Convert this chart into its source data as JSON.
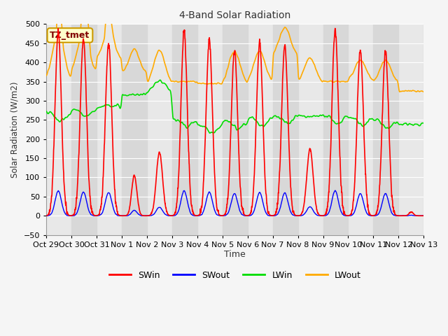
{
  "title": "4-Band Solar Radiation",
  "ylabel": "Solar Radiation (W/m2)",
  "xlabel": "Time",
  "ylim": [
    -50,
    500
  ],
  "fig_bg": "#f5f5f5",
  "plot_bg_light": "#e8e8e8",
  "plot_bg_dark": "#d8d8d8",
  "annotation_label": "TZ_tmet",
  "annotation_color": "#800000",
  "annotation_bg": "#ffffcc",
  "annotation_edge": "#cc9900",
  "series_colors": {
    "SWin": "#ff0000",
    "SWout": "#0000ff",
    "LWin": "#00dd00",
    "LWout": "#ffaa00"
  },
  "x_tick_labels": [
    "Oct 29",
    "Oct 30",
    "Oct 31",
    "Nov 1",
    "Nov 2",
    "Nov 3",
    "Nov 4",
    "Nov 5",
    "Nov 6",
    "Nov 7",
    "Nov 8",
    "Nov 9",
    "Nov 10",
    "Nov 11",
    "Nov 12",
    "Nov 13"
  ],
  "n_days": 15,
  "dt": 0.1
}
